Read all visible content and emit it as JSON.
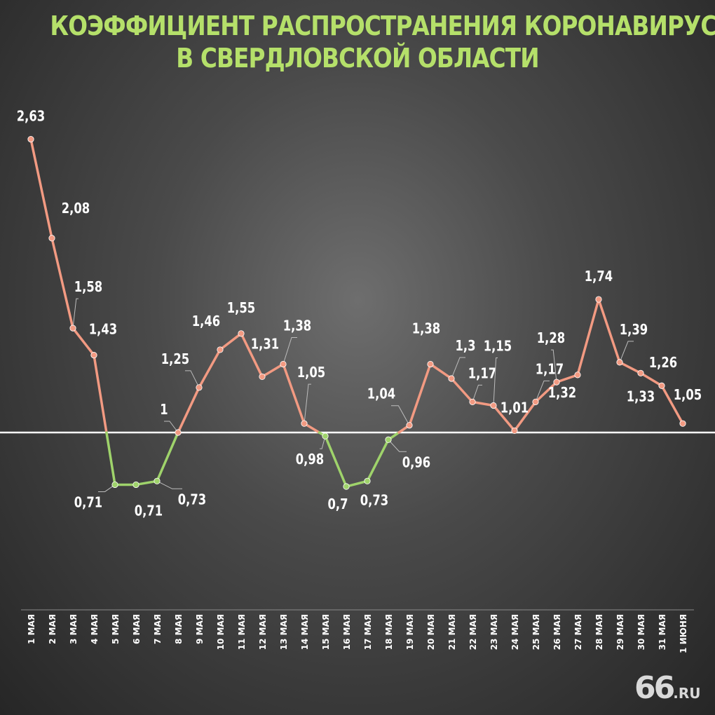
{
  "title": {
    "line1": "КОЭФФИЦИЕНТ РАСПРОСТРАНЕНИЯ КОРОНАВИРУСА",
    "line2": "В СВЕРДЛОВСКОЙ ОБЛАСТИ"
  },
  "logo": {
    "num": "66",
    "suffix": ".RU"
  },
  "colors": {
    "above": "#f29a82",
    "below": "#9fd36b",
    "baseline": "#ffffff",
    "title": "#b5e06a"
  },
  "chart_data": {
    "type": "line",
    "title": "КОЭФФИЦИЕНТ РАСПРОСТРАНЕНИЯ КОРОНАВИРУСА В СВЕРДЛОВСКОЙ ОБЛАСТИ",
    "categories": [
      "1 мая",
      "2 мая",
      "3 мая",
      "4 мая",
      "5 мая",
      "6 мая",
      "7 мая",
      "8 мая",
      "9 мая",
      "10 мая",
      "11 мая",
      "12 мая",
      "13  мая",
      "14 мая",
      "15 мая",
      "16 мая",
      "17 мая",
      "18 мая",
      "19 мая",
      "20 мая",
      "21 мая",
      "22 мая",
      "23 мая",
      "24 мая",
      "25 мая",
      "26 мая",
      "27 мая",
      "28 мая",
      "29 мая",
      "30 мая",
      "31 мая",
      "1 июня"
    ],
    "values": [
      2.63,
      2.08,
      1.58,
      1.43,
      0.71,
      0.71,
      0.73,
      1,
      1.25,
      1.46,
      1.55,
      1.31,
      1.38,
      1.05,
      0.98,
      0.7,
      0.73,
      0.96,
      1.04,
      1.38,
      1.3,
      1.17,
      1.15,
      1.01,
      1.17,
      1.28,
      1.32,
      1.74,
      1.39,
      1.33,
      1.26,
      1.05
    ],
    "labels": [
      "2,63",
      "2,08",
      "1,58",
      "1,43",
      "0,71",
      "0,71",
      "0,73",
      "1",
      "1,25",
      "1,46",
      "1,55",
      "1,31",
      "1,38",
      "1,05",
      "0,98",
      "0,7",
      "0,73",
      "0,96",
      "1,04",
      "1,38",
      "1,3",
      "1,17",
      "1,15",
      "1,01",
      "1,17",
      "1,28",
      "1,32",
      "1,74",
      "1,39",
      "1,33",
      "1,26",
      "1,05"
    ],
    "reference_line": 1,
    "grid": false,
    "xlabel": "",
    "ylabel": ""
  }
}
